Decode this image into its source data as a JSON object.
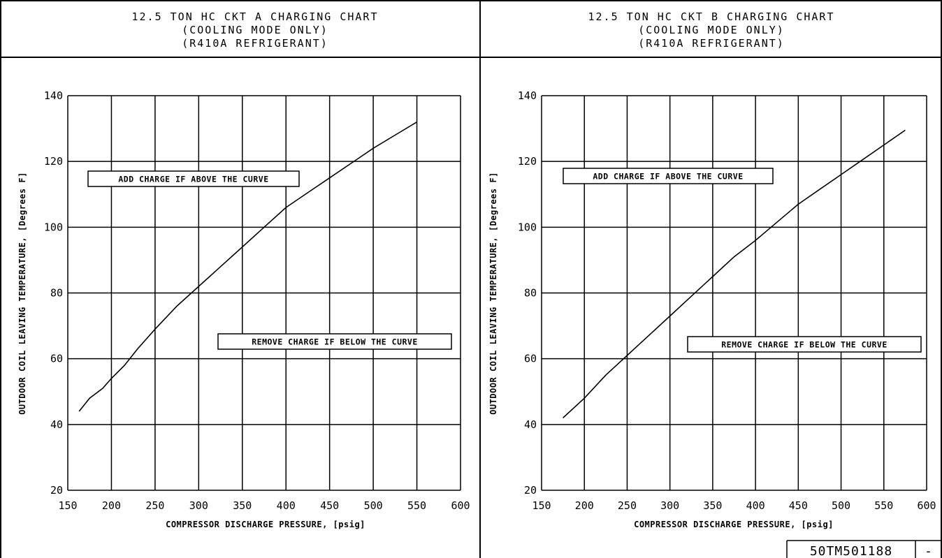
{
  "panels": [
    {
      "title_lines": [
        "12.5 TON HC CKT A CHARGING CHART",
        "(COOLING MODE ONLY)",
        "(R410A REFRIGERANT)"
      ],
      "add_note": "ADD CHARGE IF ABOVE THE CURVE",
      "remove_note": "REMOVE CHARGE IF BELOW THE CURVE"
    },
    {
      "title_lines": [
        "12.5 TON HC CKT B CHARGING CHART",
        "(COOLING MODE ONLY)",
        "(R410A REFRIGERANT)"
      ],
      "add_note": "ADD CHARGE IF ABOVE THE CURVE",
      "remove_note": "REMOVE CHARGE IF BELOW THE CURVE"
    }
  ],
  "doc_number": "50TM501188",
  "revision": "-",
  "chart_data": [
    {
      "type": "line",
      "title": "12.5 TON HC CKT A CHARGING CHART (COOLING MODE ONLY) (R410A REFRIGERANT)",
      "xlabel": "COMPRESSOR DISCHARGE PRESSURE, [psig]",
      "ylabel": "OUTDOOR COIL LEAVING TEMPERATURE, [Degrees F]",
      "xlim": [
        150,
        600
      ],
      "ylim": [
        20,
        140
      ],
      "xticks": [
        150,
        200,
        250,
        300,
        350,
        400,
        450,
        500,
        550,
        600
      ],
      "yticks": [
        20,
        40,
        60,
        80,
        100,
        120,
        140
      ],
      "grid": true,
      "legend": "none",
      "x": [
        163,
        175,
        190,
        200,
        215,
        230,
        250,
        275,
        300,
        325,
        350,
        375,
        400,
        425,
        450,
        475,
        500,
        525,
        550
      ],
      "y": [
        44,
        48,
        51,
        54,
        58,
        63,
        69,
        76,
        82,
        88,
        94,
        100,
        106,
        110.5,
        115,
        119.5,
        124,
        128,
        132
      ]
    },
    {
      "type": "line",
      "title": "12.5 TON HC CKT B CHARGING CHART (COOLING MODE ONLY) (R410A REFRIGERANT)",
      "xlabel": "COMPRESSOR DISCHARGE PRESSURE, [psig]",
      "ylabel": "OUTDOOR COIL LEAVING TEMPERATURE, [Degrees F]",
      "xlim": [
        150,
        600
      ],
      "ylim": [
        20,
        140
      ],
      "xticks": [
        150,
        200,
        250,
        300,
        350,
        400,
        450,
        500,
        550,
        600
      ],
      "yticks": [
        20,
        40,
        60,
        80,
        100,
        120,
        140
      ],
      "grid": true,
      "legend": "none",
      "x": [
        175,
        200,
        225,
        250,
        275,
        300,
        325,
        350,
        375,
        400,
        425,
        450,
        475,
        500,
        525,
        550,
        575
      ],
      "y": [
        42,
        48,
        55,
        61,
        67,
        73,
        79,
        85,
        91,
        96,
        101.5,
        107,
        111.5,
        116,
        120.5,
        125,
        129.5
      ]
    }
  ]
}
